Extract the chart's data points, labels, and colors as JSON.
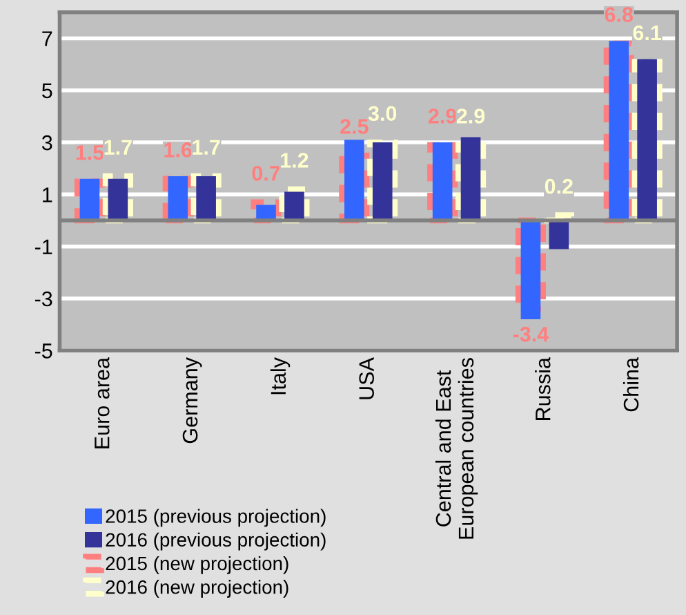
{
  "chart_data": {
    "type": "bar",
    "categories": [
      "Euro area",
      "Germany",
      "Italy",
      "USA",
      "Central and East\nEuropean countries",
      "Russia",
      "China"
    ],
    "series": [
      {
        "name": "2015 (previous projection)",
        "color": "#3366ff",
        "values": [
          1.6,
          1.7,
          0.6,
          3.1,
          3.0,
          -3.8,
          6.9
        ]
      },
      {
        "name": "2016 (previous projection)",
        "color": "#333399",
        "values": [
          1.6,
          1.7,
          1.1,
          3.0,
          3.2,
          -1.1,
          6.2
        ]
      },
      {
        "name": "2015 (new projection)",
        "color": "#ff7f7f",
        "line_style": "dashed",
        "values": [
          1.5,
          1.6,
          0.7,
          2.5,
          2.9,
          -3.4,
          6.8
        ],
        "value_labels": [
          "1.5",
          "1.6",
          "0.7",
          "2.5",
          "2.9",
          "-3.4",
          "6.8"
        ]
      },
      {
        "name": "2016 (new projection)",
        "color": "#ffffcc",
        "line_style": "dashed",
        "values": [
          1.7,
          1.7,
          1.2,
          3.0,
          2.9,
          0.2,
          6.1
        ],
        "value_labels": [
          "1.7",
          "1.7",
          "1.2",
          "3.0",
          "2.9",
          "0.2",
          "6.1"
        ]
      }
    ],
    "ylim": [
      -5,
      8
    ],
    "yticks": [
      -5,
      -3,
      -1,
      1,
      3,
      5,
      7
    ],
    "grid": "y",
    "legend": "bottom left"
  }
}
